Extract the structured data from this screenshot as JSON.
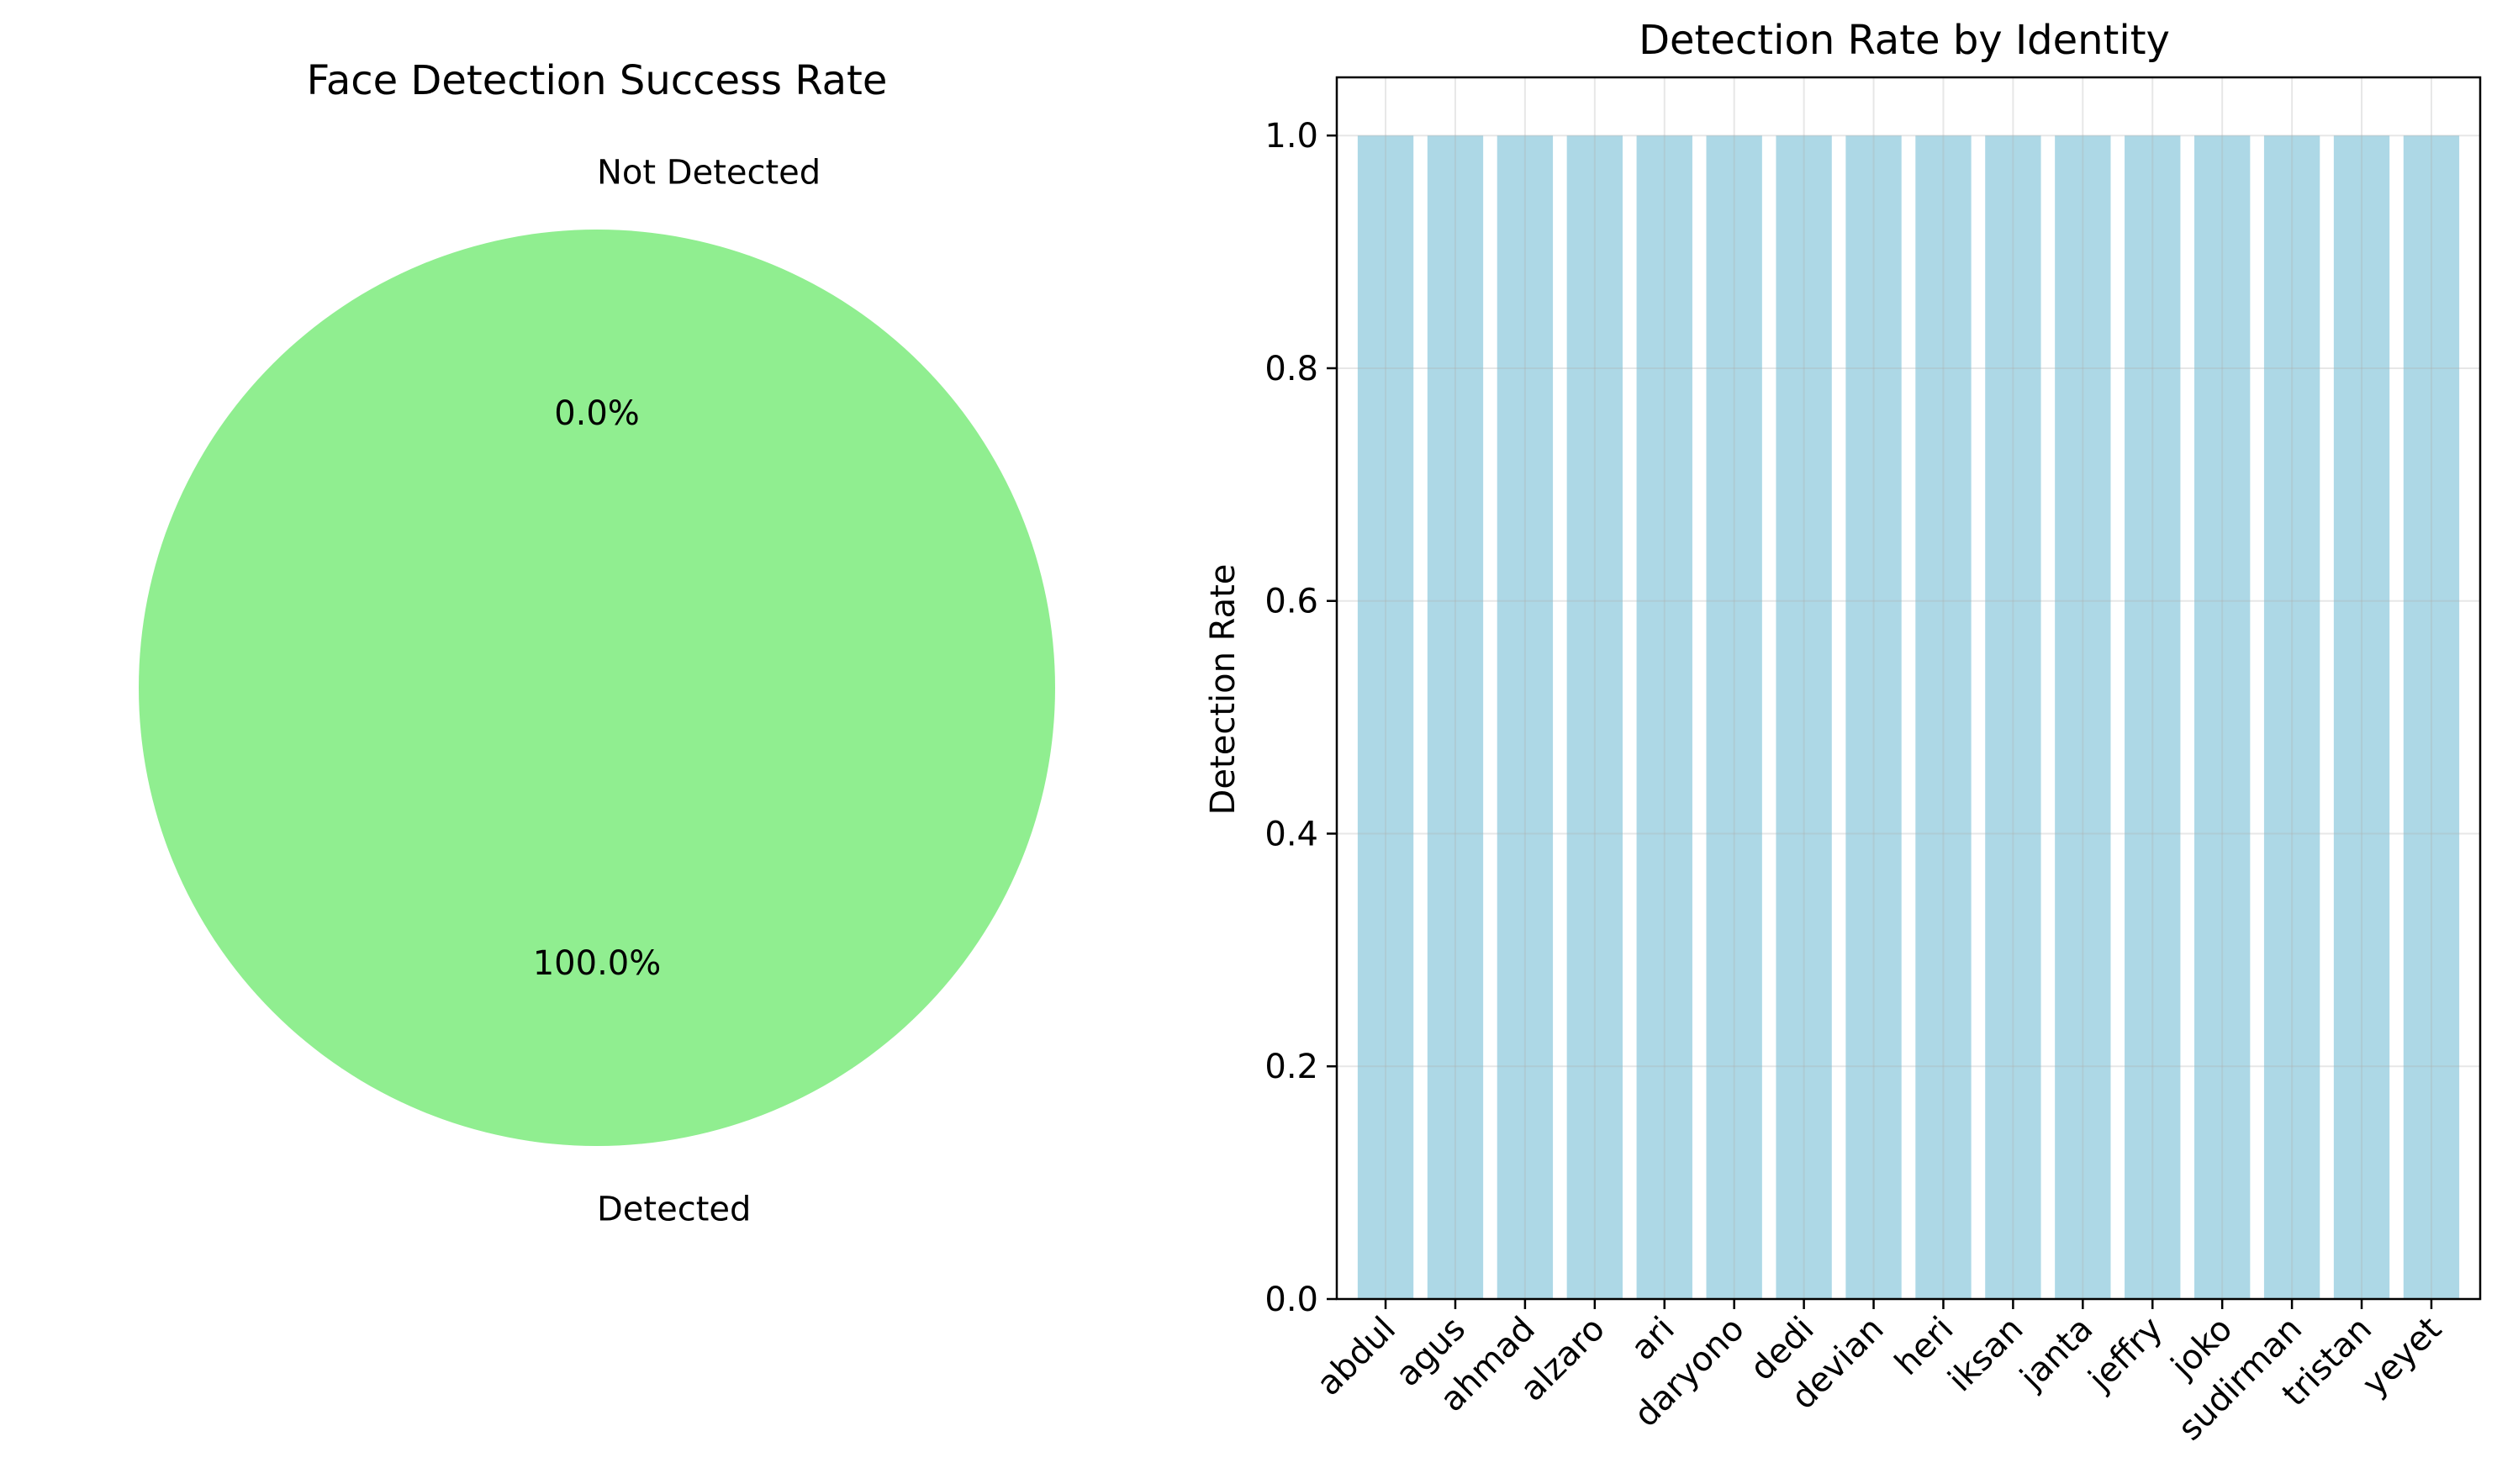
{
  "chart_data": [
    {
      "type": "pie",
      "title": "Face Detection Success Rate",
      "slices": [
        {
          "label": "Detected",
          "value": 100.0,
          "pct_label": "100.0%",
          "color": "#90EE90"
        },
        {
          "label": "Not Detected",
          "value": 0.0,
          "pct_label": "0.0%",
          "color": "#FF7F7F"
        }
      ]
    },
    {
      "type": "bar",
      "title": "Detection Rate by Identity",
      "xlabel": "",
      "ylabel": "Detection Rate",
      "ylim": [
        0,
        1.05
      ],
      "yticks": [
        "0.0",
        "0.2",
        "0.4",
        "0.6",
        "0.8",
        "1.0"
      ],
      "categories": [
        "abdul",
        "agus",
        "ahmad",
        "alzaro",
        "ari",
        "daryono",
        "dedi",
        "devian",
        "heri",
        "iksan",
        "janta",
        "jeffry",
        "joko",
        "sudirman",
        "tristan",
        "yeyet"
      ],
      "values": [
        1.0,
        1.0,
        1.0,
        1.0,
        1.0,
        1.0,
        1.0,
        1.0,
        1.0,
        1.0,
        1.0,
        1.0,
        1.0,
        1.0,
        1.0,
        1.0
      ],
      "bar_color": "#ADD8E6",
      "grid": true
    }
  ]
}
